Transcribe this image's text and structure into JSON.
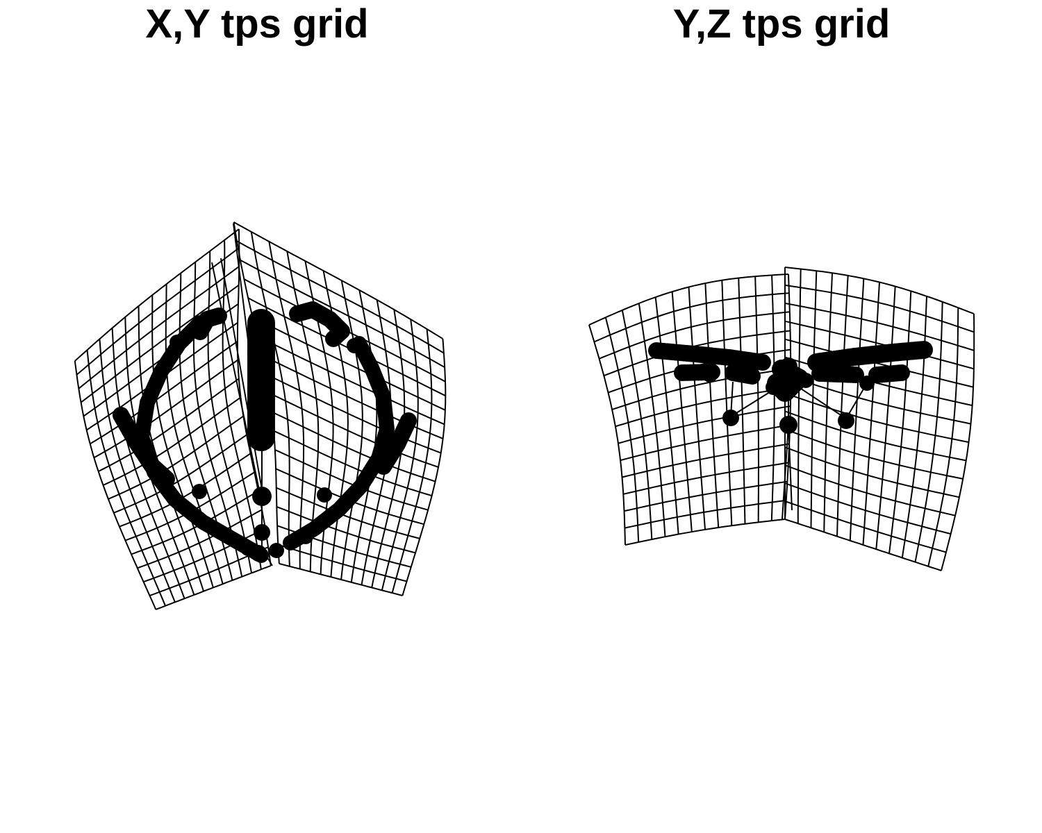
{
  "panels": [
    {
      "title": "X,Y tps grid"
    },
    {
      "title": "Y,Z tps grid"
    }
  ],
  "style": {
    "line_color": "#000000",
    "point_color": "#000000",
    "background": "#ffffff"
  }
}
